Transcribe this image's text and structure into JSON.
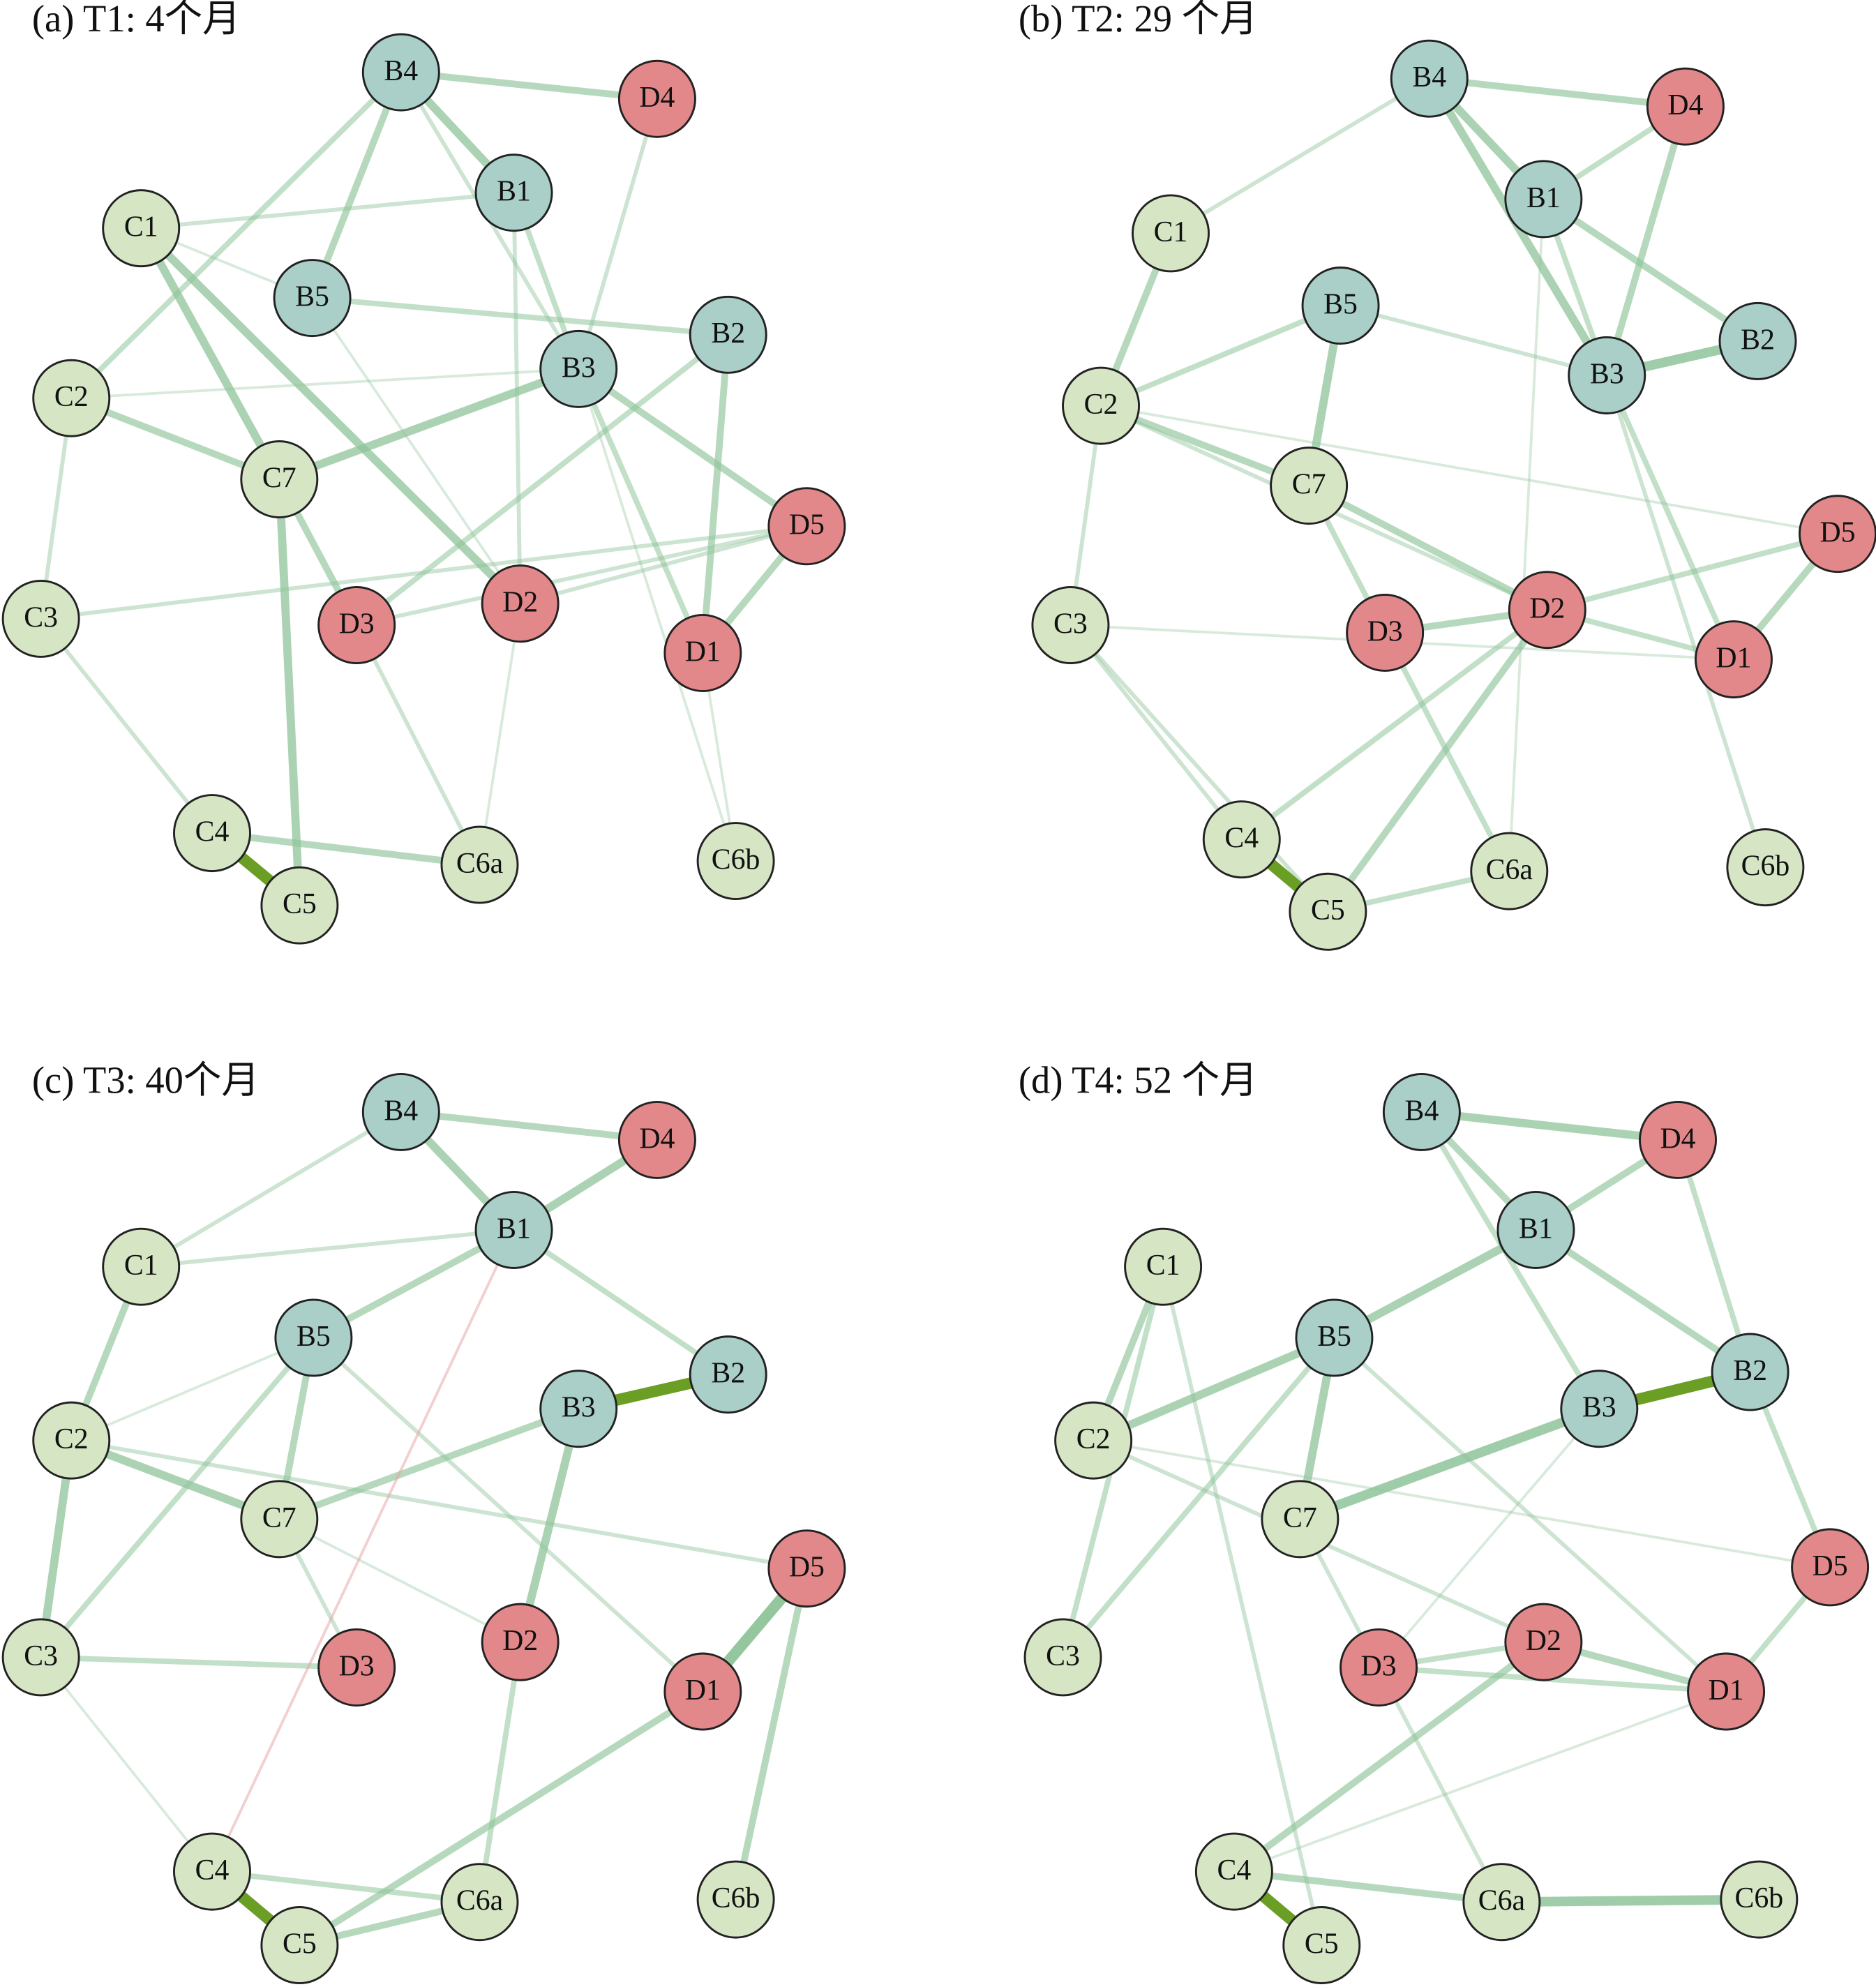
{
  "panels": [
    {
      "title": "(a) T1: 4个月",
      "nodes": [
        "B4",
        "D4",
        "B1",
        "C1",
        "B5",
        "B2",
        "B3",
        "C2",
        "C7",
        "D5",
        "C3",
        "D3",
        "D2",
        "D1",
        "C4",
        "C6a",
        "C6b",
        "C5"
      ]
    },
    {
      "title": "(b) T2: 29 个月",
      "nodes": [
        "B4",
        "D4",
        "B1",
        "C1",
        "B5",
        "B2",
        "B3",
        "C2",
        "C7",
        "D5",
        "C3",
        "D3",
        "D2",
        "D1",
        "C4",
        "C6a",
        "C6b",
        "C5"
      ]
    },
    {
      "title": "(c) T3: 40个月",
      "nodes": [
        "B4",
        "D4",
        "B1",
        "C1",
        "B5",
        "B2",
        "B3",
        "C2",
        "C7",
        "D5",
        "C3",
        "D3",
        "D2",
        "D1",
        "C4",
        "C6a",
        "C6b",
        "C5"
      ]
    },
    {
      "title": "(d) T4: 52 个月",
      "nodes": [
        "B4",
        "D4",
        "B1",
        "C1",
        "B5",
        "B2",
        "B3",
        "C2",
        "C7",
        "D5",
        "C3",
        "D3",
        "D2",
        "D1",
        "C4",
        "C6a",
        "C6b",
        "C5"
      ]
    }
  ]
}
